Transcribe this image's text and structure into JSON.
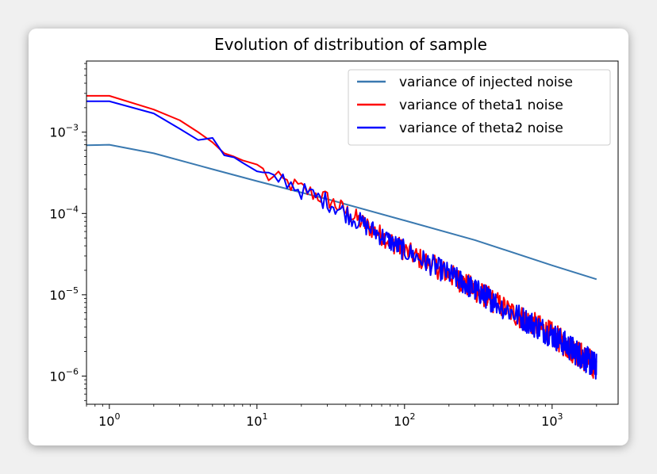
{
  "chart_data": {
    "type": "line",
    "title": "Evolution of distribution of sample",
    "xlabel": "",
    "ylabel": "",
    "xscale": "log",
    "yscale": "log",
    "xlim": [
      0.7,
      2800
    ],
    "ylim": [
      4.5e-07,
      0.0075
    ],
    "x_ticks": [
      {
        "value": 1,
        "base": "10",
        "exp": "0"
      },
      {
        "value": 10,
        "base": "10",
        "exp": "1"
      },
      {
        "value": 100,
        "base": "10",
        "exp": "2"
      },
      {
        "value": 1000,
        "base": "10",
        "exp": "3"
      }
    ],
    "y_ticks": [
      {
        "value": 0.001,
        "base": "10",
        "exp": "−3"
      },
      {
        "value": 0.0001,
        "base": "10",
        "exp": "−4"
      },
      {
        "value": 1e-05,
        "base": "10",
        "exp": "−5"
      },
      {
        "value": 1e-06,
        "base": "10",
        "exp": "−6"
      }
    ],
    "legend_position": "top-right",
    "grid": false,
    "series": [
      {
        "name": "variance of injected noise",
        "color": "#3a79b0",
        "points": [
          [
            0.7,
            0.00069
          ],
          [
            1,
            0.0007
          ],
          [
            2,
            0.00055
          ],
          [
            5,
            0.00035
          ],
          [
            10,
            0.00025
          ],
          [
            30,
            0.00015
          ],
          [
            100,
            8.2e-05
          ],
          [
            300,
            4.7e-05
          ],
          [
            1000,
            2.3e-05
          ],
          [
            2000,
            1.55e-05
          ]
        ]
      },
      {
        "name": "variance of theta1 noise",
        "color": "#ff0000",
        "points": [
          [
            0.7,
            0.0028
          ],
          [
            1,
            0.0028
          ],
          [
            2,
            0.0019
          ],
          [
            3,
            0.0014
          ],
          [
            4,
            0.001
          ],
          [
            5,
            0.00075
          ],
          [
            6,
            0.00055
          ],
          [
            7,
            0.0005
          ],
          [
            8,
            0.00045
          ],
          [
            10,
            0.0004
          ],
          [
            12,
            0.00028
          ],
          [
            15,
            0.00025
          ],
          [
            20,
            0.0002
          ],
          [
            30,
            0.00015
          ],
          [
            50,
            8e-05
          ],
          [
            100,
            3.5e-05
          ],
          [
            200,
            1.8e-05
          ],
          [
            500,
            6.5e-06
          ],
          [
            1000,
            3.2e-06
          ],
          [
            2000,
            1.3e-06
          ]
        ],
        "noise_from_x": 10
      },
      {
        "name": "variance of theta2 noise",
        "color": "#0000ff",
        "points": [
          [
            0.7,
            0.0024
          ],
          [
            1,
            0.0024
          ],
          [
            2,
            0.0017
          ],
          [
            3,
            0.0011
          ],
          [
            4,
            0.0008
          ],
          [
            5,
            0.00085
          ],
          [
            6,
            0.00052
          ],
          [
            7,
            0.00049
          ],
          [
            8,
            0.00042
          ],
          [
            10,
            0.00033
          ],
          [
            12,
            0.00026
          ],
          [
            15,
            0.00027
          ],
          [
            20,
            0.00019
          ],
          [
            30,
            0.00014
          ],
          [
            50,
            7.8e-05
          ],
          [
            100,
            3.5e-05
          ],
          [
            200,
            1.8e-05
          ],
          [
            500,
            6.5e-06
          ],
          [
            1000,
            3.2e-06
          ],
          [
            2000,
            1.3e-06
          ]
        ],
        "noise_from_x": 10
      }
    ]
  }
}
